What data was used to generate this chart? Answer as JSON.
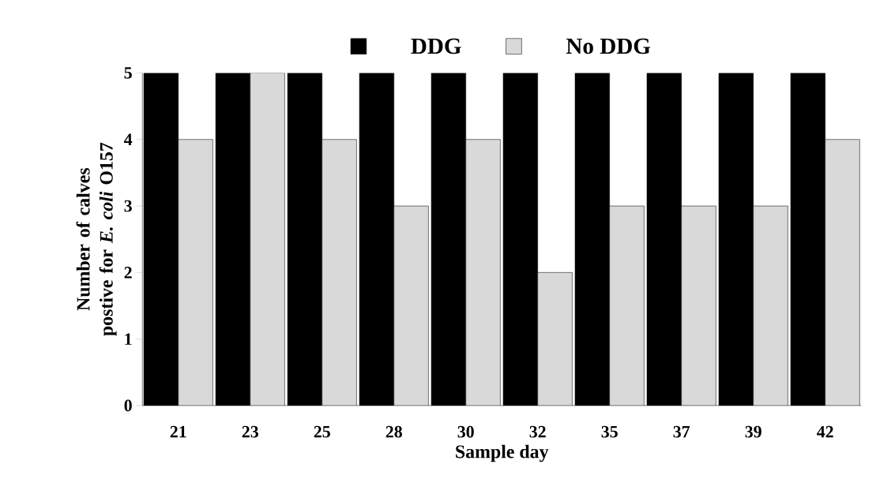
{
  "chart_data": {
    "type": "bar",
    "xlabel": "Sample day",
    "ylabel": "Number of calves postive for *E. coli* O157",
    "categories": [
      "21",
      "23",
      "25",
      "28",
      "30",
      "32",
      "35",
      "37",
      "39",
      "42"
    ],
    "series": [
      {
        "name": "DDG",
        "color": "#000000",
        "values": [
          5,
          5,
          5,
          5,
          5,
          5,
          5,
          5,
          5,
          5
        ]
      },
      {
        "name": "No DDG",
        "color": "#d9d9d9",
        "values": [
          4,
          5,
          4,
          3,
          4,
          2,
          3,
          3,
          3,
          4
        ]
      }
    ],
    "ylim": [
      0,
      5
    ],
    "yticks": [
      0,
      1,
      2,
      3,
      4,
      5
    ],
    "grid": false,
    "legend": "top"
  }
}
